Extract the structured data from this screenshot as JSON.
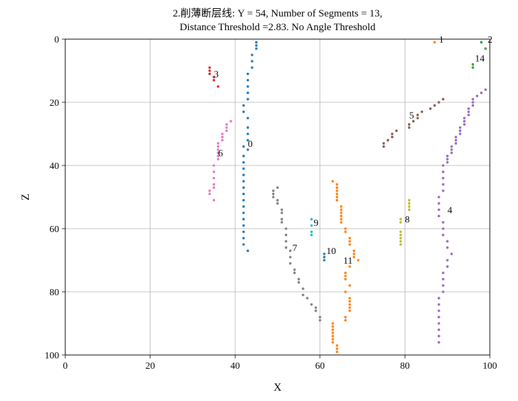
{
  "chart_data": {
    "type": "scatter",
    "title_lines": [
      "2.削薄断层线: Y = 54, Number of Segments = 13,",
      "Distance Threshold =2.83. No Angle Threshold"
    ],
    "xlabel": "X",
    "ylabel": "Z",
    "xlim": [
      0,
      100
    ],
    "ylim": [
      0,
      100
    ],
    "y_inverted": true,
    "x_ticks": [
      "0",
      "20",
      "40",
      "60",
      "80",
      "100"
    ],
    "y_ticks": [
      "0",
      "20",
      "40",
      "60",
      "80",
      "100"
    ],
    "grid": true,
    "series": [
      {
        "label": "0",
        "color": "#1f77b4",
        "label_pos": [
          43,
          33
        ],
        "points": [
          [
            45,
            1
          ],
          [
            45,
            2
          ],
          [
            45,
            3
          ],
          [
            44,
            5
          ],
          [
            44,
            7
          ],
          [
            44,
            9
          ],
          [
            43,
            11
          ],
          [
            43,
            13
          ],
          [
            43,
            15
          ],
          [
            43,
            17
          ],
          [
            43,
            19
          ],
          [
            42,
            21
          ],
          [
            42,
            23
          ],
          [
            43,
            25
          ],
          [
            43,
            28
          ],
          [
            43,
            30
          ],
          [
            43,
            32
          ],
          [
            42,
            34
          ],
          [
            43,
            35
          ],
          [
            42,
            37
          ],
          [
            42,
            39
          ],
          [
            42,
            41
          ],
          [
            42,
            43
          ],
          [
            42,
            45
          ],
          [
            42,
            47
          ],
          [
            42,
            49
          ],
          [
            42,
            51
          ],
          [
            42,
            53
          ],
          [
            42,
            55
          ],
          [
            42,
            57
          ],
          [
            42,
            59
          ],
          [
            42,
            61
          ],
          [
            42,
            63
          ],
          [
            42,
            65
          ],
          [
            43,
            67
          ]
        ]
      },
      {
        "label": "1",
        "color": "#ff7f0e",
        "label_pos": [
          88,
          0
        ],
        "points": [
          [
            87,
            1
          ]
        ]
      },
      {
        "label": "2",
        "color": "#2ca02c",
        "label_pos": [
          99.5,
          0
        ],
        "points": [
          [
            98,
            1
          ],
          [
            99,
            3
          ]
        ]
      },
      {
        "label": "3",
        "color": "#d62728",
        "label_pos": [
          35,
          11
        ],
        "points": [
          [
            34,
            9
          ],
          [
            34,
            10
          ],
          [
            34,
            11
          ],
          [
            35,
            12
          ],
          [
            35,
            13
          ],
          [
            36,
            15
          ]
        ]
      },
      {
        "label": "4",
        "color": "#9467bd",
        "label_pos": [
          90,
          54
        ],
        "points": [
          [
            99,
            16
          ],
          [
            98,
            17
          ],
          [
            97,
            18
          ],
          [
            96,
            19
          ],
          [
            96,
            20
          ],
          [
            96,
            21
          ],
          [
            95,
            22
          ],
          [
            95,
            23
          ],
          [
            95,
            24
          ],
          [
            94,
            25
          ],
          [
            94,
            26
          ],
          [
            94,
            27
          ],
          [
            93,
            28
          ],
          [
            93,
            29
          ],
          [
            93,
            30
          ],
          [
            92,
            31
          ],
          [
            92,
            32
          ],
          [
            92,
            33
          ],
          [
            91,
            34
          ],
          [
            91,
            35
          ],
          [
            91,
            36
          ],
          [
            90,
            37
          ],
          [
            90,
            38
          ],
          [
            90,
            39
          ],
          [
            89,
            40
          ],
          [
            89,
            42
          ],
          [
            89,
            44
          ],
          [
            89,
            46
          ],
          [
            89,
            48
          ],
          [
            88,
            50
          ],
          [
            88,
            52
          ],
          [
            88,
            54
          ],
          [
            88,
            56
          ],
          [
            89,
            58
          ],
          [
            89,
            60
          ],
          [
            89,
            62
          ],
          [
            90,
            64
          ],
          [
            90,
            66
          ],
          [
            91,
            68
          ],
          [
            90,
            70
          ],
          [
            90,
            72
          ],
          [
            89,
            74
          ],
          [
            89,
            76
          ],
          [
            89,
            78
          ],
          [
            89,
            80
          ],
          [
            88,
            82
          ],
          [
            88,
            84
          ],
          [
            88,
            86
          ],
          [
            88,
            88
          ],
          [
            88,
            90
          ],
          [
            88,
            92
          ],
          [
            88,
            94
          ],
          [
            88,
            96
          ]
        ]
      },
      {
        "label": "5",
        "color": "#8c564b",
        "label_pos": [
          81,
          24
        ],
        "points": [
          [
            89,
            19
          ],
          [
            88,
            20
          ],
          [
            87,
            21
          ],
          [
            86,
            22
          ],
          [
            84,
            23
          ],
          [
            83,
            24
          ],
          [
            83,
            25
          ],
          [
            82,
            26
          ],
          [
            81,
            27
          ],
          [
            81,
            28
          ],
          [
            78,
            29
          ],
          [
            77,
            30
          ],
          [
            77,
            31
          ],
          [
            76,
            32
          ],
          [
            75,
            33
          ],
          [
            75,
            34
          ]
        ]
      },
      {
        "label": "6",
        "color": "#e377c2",
        "label_pos": [
          36,
          36
        ],
        "points": [
          [
            39,
            26
          ],
          [
            38,
            27
          ],
          [
            38,
            28
          ],
          [
            38,
            29
          ],
          [
            37,
            30
          ],
          [
            37,
            31
          ],
          [
            37,
            32
          ],
          [
            36,
            33
          ],
          [
            36,
            34
          ],
          [
            36,
            35
          ],
          [
            36,
            36
          ],
          [
            36,
            37
          ],
          [
            36,
            38
          ],
          [
            35,
            40
          ],
          [
            35,
            42
          ],
          [
            35,
            44
          ],
          [
            35,
            46
          ],
          [
            35,
            47
          ],
          [
            34,
            48
          ],
          [
            34,
            49
          ],
          [
            35,
            51
          ]
        ]
      },
      {
        "label": "7",
        "color": "#7f7f7f",
        "label_pos": [
          53.5,
          66
        ],
        "points": [
          [
            50,
            47
          ],
          [
            49,
            48
          ],
          [
            49,
            49
          ],
          [
            49,
            50
          ],
          [
            50,
            51
          ],
          [
            50,
            52
          ],
          [
            51,
            54
          ],
          [
            51,
            55
          ],
          [
            51,
            57
          ],
          [
            51,
            58
          ],
          [
            52,
            60
          ],
          [
            52,
            62
          ],
          [
            52,
            64
          ],
          [
            52,
            66
          ],
          [
            53,
            67
          ],
          [
            53,
            69
          ],
          [
            53,
            71
          ],
          [
            54,
            73
          ],
          [
            54,
            74
          ],
          [
            55,
            76
          ],
          [
            55,
            77
          ],
          [
            56,
            79
          ],
          [
            56,
            81
          ],
          [
            57,
            82
          ],
          [
            58,
            84
          ],
          [
            59,
            85
          ],
          [
            59,
            86
          ],
          [
            60,
            88
          ],
          [
            60,
            89
          ]
        ]
      },
      {
        "label": "8",
        "color": "#bcbd22",
        "label_pos": [
          80,
          57
        ],
        "points": [
          [
            81,
            51
          ],
          [
            81,
            52
          ],
          [
            81,
            53
          ],
          [
            81,
            54
          ],
          [
            79,
            57
          ],
          [
            79,
            58
          ],
          [
            79,
            61
          ],
          [
            79,
            62
          ],
          [
            79,
            63
          ],
          [
            79,
            64
          ],
          [
            79,
            65
          ]
        ]
      },
      {
        "label": "9",
        "color": "#17becf",
        "label_pos": [
          58.5,
          58
        ],
        "points": [
          [
            58,
            57
          ],
          [
            58,
            59
          ],
          [
            58,
            61
          ],
          [
            58,
            62
          ]
        ]
      },
      {
        "label": "10",
        "color": "#1f77b4",
        "label_pos": [
          61.5,
          67
        ],
        "points": [
          [
            61,
            68
          ],
          [
            61,
            69
          ],
          [
            61,
            70
          ]
        ]
      },
      {
        "label": "11",
        "color": "#ff7f0e",
        "label_pos": [
          65.5,
          70
        ],
        "points": [
          [
            63,
            45
          ],
          [
            64,
            46
          ],
          [
            64,
            47
          ],
          [
            64,
            48
          ],
          [
            64,
            49
          ],
          [
            64,
            50
          ],
          [
            64,
            51
          ],
          [
            65,
            53
          ],
          [
            65,
            54
          ],
          [
            65,
            55
          ],
          [
            65,
            56
          ],
          [
            65,
            57
          ],
          [
            65,
            58
          ],
          [
            66,
            60
          ],
          [
            66,
            61
          ],
          [
            67,
            63
          ],
          [
            67,
            64
          ],
          [
            67,
            65
          ],
          [
            68,
            67
          ],
          [
            68,
            68
          ],
          [
            68,
            69
          ],
          [
            69,
            70
          ],
          [
            67,
            72
          ],
          [
            66,
            74
          ],
          [
            66,
            75
          ],
          [
            66,
            76
          ],
          [
            67,
            78
          ],
          [
            66,
            80
          ],
          [
            67,
            82
          ],
          [
            67,
            83
          ],
          [
            67,
            84
          ],
          [
            67,
            85
          ],
          [
            67,
            86
          ],
          [
            66,
            88
          ],
          [
            66,
            89
          ],
          [
            63,
            90
          ],
          [
            63,
            91
          ],
          [
            63,
            92
          ],
          [
            63,
            93
          ],
          [
            63,
            94
          ],
          [
            63,
            95
          ],
          [
            63,
            96
          ],
          [
            64,
            97
          ],
          [
            64,
            98
          ],
          [
            64,
            99
          ]
        ]
      },
      {
        "label": "14",
        "color": "#2ca02c",
        "label_pos": [
          96.5,
          6
        ],
        "points": [
          [
            96,
            8
          ],
          [
            96,
            9
          ]
        ]
      }
    ]
  }
}
